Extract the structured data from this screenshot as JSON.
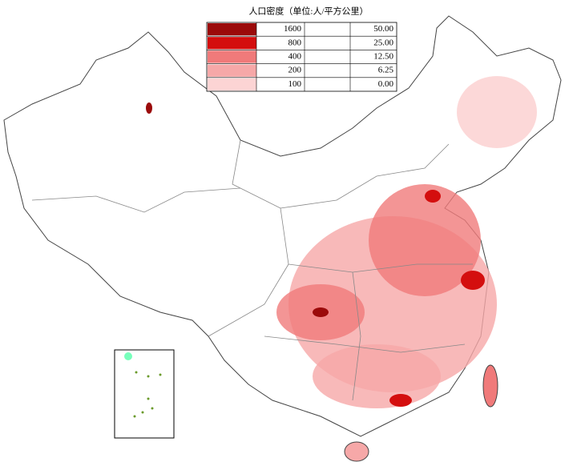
{
  "legend": {
    "title": "人口密度（单位:人/平方公里）",
    "rows": [
      {
        "label": "1600",
        "value": "50.00",
        "color": "#9b0a0a"
      },
      {
        "label": "800",
        "value": "25.00",
        "color": "#d40e0e"
      },
      {
        "label": "400",
        "value": "12.50",
        "color": "#f07a7a"
      },
      {
        "label": "200",
        "value": "6.25",
        "color": "#f6a8a8"
      },
      {
        "label": "100",
        "value": "0.00",
        "color": "#fcd4d4"
      }
    ]
  }
}
